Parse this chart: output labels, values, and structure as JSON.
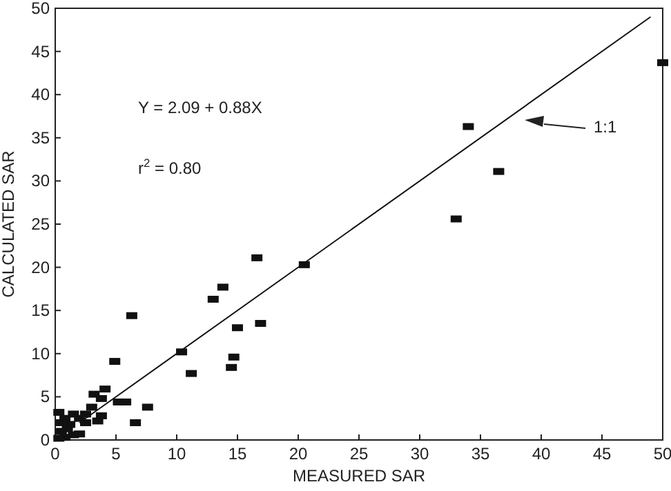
{
  "chart_data": {
    "type": "scatter",
    "xlabel": "MEASURED SAR",
    "ylabel": "CALCULATED SAR",
    "xlim": [
      0,
      50
    ],
    "ylim": [
      0,
      50
    ],
    "xticks": [
      0,
      5,
      10,
      15,
      20,
      25,
      30,
      35,
      40,
      45,
      50
    ],
    "yticks": [
      0,
      5,
      10,
      15,
      20,
      25,
      30,
      35,
      40,
      45,
      50
    ],
    "grid": false,
    "annotations": [
      "Y = 2.09 + 0.88X",
      "r$^{2}$ = 0.80",
      "1:1"
    ],
    "series": [
      {
        "color": "#111111",
        "marker": "square",
        "x": [
          0.3,
          0.8,
          1.5,
          2,
          0.5,
          0.8,
          0.3,
          1.5,
          2,
          2.5,
          0.5,
          1.2,
          3.5,
          3,
          3.8,
          2.5,
          1,
          3.2,
          3.8,
          4.1,
          4.9,
          5.2,
          5.8,
          6.3,
          6.6,
          7.6,
          10.4,
          11.2,
          13,
          13.8,
          14.5,
          14.7,
          15,
          16.6,
          16.9,
          20.5,
          33,
          34,
          36.5,
          50
        ],
        "values": [
          0.2,
          0.3,
          0.6,
          0.7,
          2,
          2.5,
          3.2,
          3,
          2.5,
          3,
          1,
          1.8,
          2.2,
          3.8,
          2.8,
          2,
          1.3,
          5.3,
          4.8,
          5.9,
          9.1,
          4.4,
          4.4,
          14.4,
          2,
          3.8,
          10.2,
          7.7,
          16.3,
          17.7,
          8.4,
          9.6,
          13,
          21.1,
          13.5,
          20.3,
          25.6,
          36.3,
          31.1,
          43.7
        ]
      },
      {
        "type": "line",
        "color": "#111111",
        "marker": "none",
        "line_style": "solid",
        "x": [
          2,
          49
        ],
        "values": [
          2,
          49
        ]
      }
    ]
  }
}
